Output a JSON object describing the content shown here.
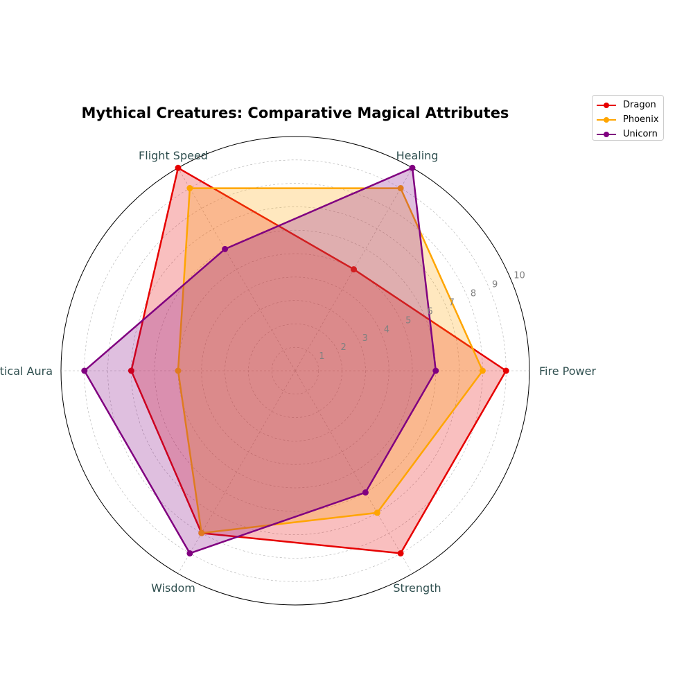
{
  "chart_data": {
    "type": "radar",
    "title": "Mythical Creatures: Comparative Magical Attributes",
    "categories": [
      "Fire Power",
      "Healing",
      "Flight Speed",
      "Mystical Aura",
      "Wisdom",
      "Strength"
    ],
    "rlim": [
      0,
      10
    ],
    "r_ticks": [
      1,
      2,
      3,
      4,
      5,
      6,
      7,
      8,
      9,
      10
    ],
    "grid": true,
    "legend_position": "upper-right-outside",
    "series": [
      {
        "name": "Dragon",
        "color": "#e60000",
        "values": [
          9,
          5,
          10,
          7,
          8,
          9
        ]
      },
      {
        "name": "Phoenix",
        "color": "#ffa500",
        "values": [
          8,
          9,
          9,
          5,
          8,
          7
        ]
      },
      {
        "name": "Unicorn",
        "color": "#800080",
        "values": [
          6,
          10,
          6,
          9,
          9,
          6
        ]
      }
    ]
  }
}
